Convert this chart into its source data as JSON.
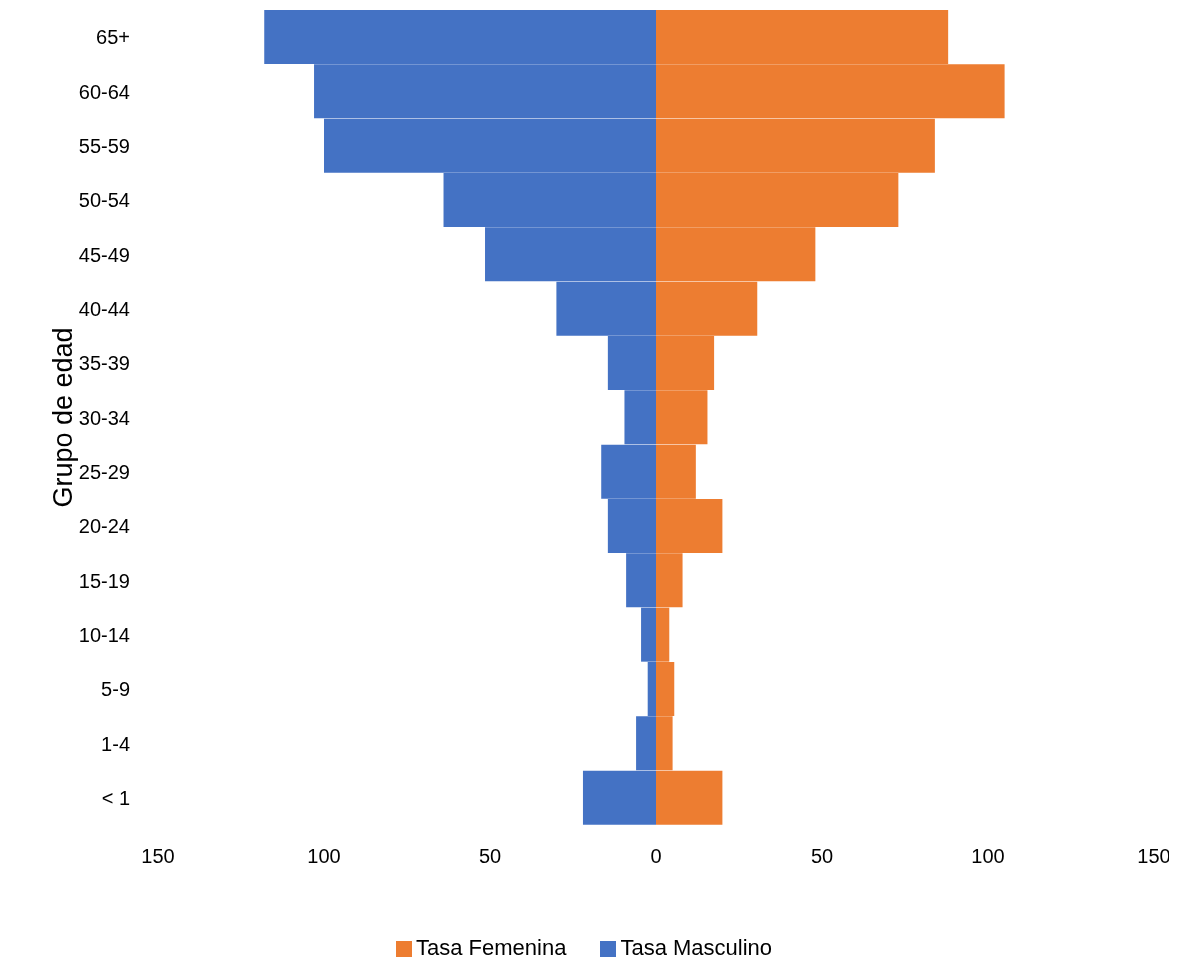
{
  "chart_data": {
    "type": "bar",
    "orientation": "horizontal",
    "stacked": true,
    "ylabel": "Grupo de edad",
    "categories": [
      "65+",
      "60-64",
      "55-59",
      "50-54",
      "45-49",
      "40-44",
      "35-39",
      "30-34",
      "25-29",
      "20-24",
      "15-19",
      "10-14",
      "5-9",
      "1-4",
      "< 1"
    ],
    "series": [
      {
        "name": "Tasa Femenina",
        "color": "#ed7d31",
        "values": [
          88,
          105,
          84,
          73,
          48,
          30.5,
          17.5,
          15.5,
          12,
          20,
          8,
          4,
          5.5,
          5,
          20
        ]
      },
      {
        "name": "Tasa Masculino",
        "color": "#4472c4",
        "values": [
          -118,
          -103,
          -100,
          -64,
          -51.5,
          -30,
          -14.5,
          -9.5,
          -16.5,
          -14.5,
          -9,
          -4.5,
          -2.5,
          -6,
          -22
        ]
      }
    ],
    "xlim": [
      -150,
      150
    ],
    "xticks": [
      {
        "value": -150,
        "label": "150"
      },
      {
        "value": -100,
        "label": "100"
      },
      {
        "value": -50,
        "label": "50"
      },
      0,
      50,
      100,
      150
    ],
    "grid": false,
    "legend": "bottom"
  }
}
